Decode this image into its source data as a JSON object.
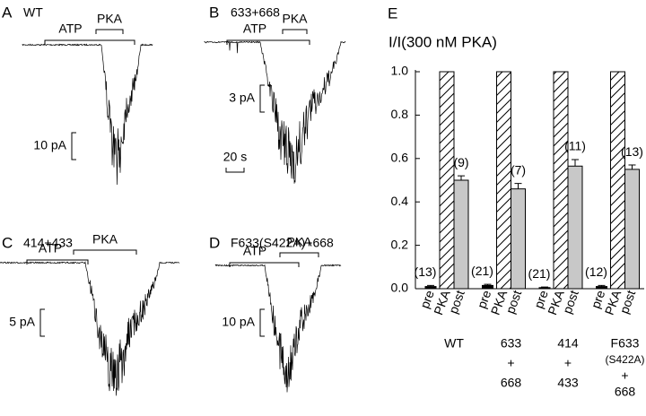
{
  "traces": [
    {
      "letter": "A",
      "name": "WT",
      "atp": "ATP",
      "pka": "PKA",
      "scale": "10 pA"
    },
    {
      "letter": "B",
      "name": "633+668",
      "atp": "ATP",
      "pka": "PKA",
      "scale": "3 pA",
      "time_scale": "20 s"
    },
    {
      "letter": "C",
      "name": "414+433",
      "atp": "ATP",
      "pka": "PKA",
      "scale": "5 pA"
    },
    {
      "letter": "D",
      "name": "F633(S422A)+668",
      "atp": "ATP",
      "pka": "PKA",
      "scale": "10 pA"
    }
  ],
  "chart_data": {
    "type": "bar",
    "panel": "E",
    "title": "I/I(300 nM PKA)",
    "categories": [
      [
        "WT"
      ],
      [
        "633",
        "+",
        "668"
      ],
      [
        "414",
        "+",
        "433"
      ],
      [
        "F633",
        "(S422A)",
        "+",
        "668"
      ]
    ],
    "series": [
      {
        "name": "pre",
        "color": "#000000",
        "values": [
          0.01,
          0.015,
          0.005,
          0.01
        ],
        "errors": [
          0.005,
          0.005,
          0.003,
          0.005
        ],
        "n_labels": [
          "(13)",
          "(21)",
          "(21)",
          "(12)"
        ]
      },
      {
        "name": "PKA",
        "color": "hatch",
        "values": [
          1.0,
          1.0,
          1.0,
          1.0
        ]
      },
      {
        "name": "post",
        "color": "#c8c8c8",
        "values": [
          0.5,
          0.46,
          0.565,
          0.55
        ],
        "errors": [
          0.02,
          0.025,
          0.03,
          0.02
        ],
        "n_labels": [
          "(9)",
          "(7)",
          "(11)",
          "(13)"
        ]
      }
    ],
    "ylim": [
      0,
      1
    ],
    "yticks": [
      {
        "value": 0,
        "label": "0.0"
      },
      0.2,
      0.4,
      0.6,
      0.8,
      {
        "value": 1,
        "label": "1.0"
      }
    ]
  }
}
